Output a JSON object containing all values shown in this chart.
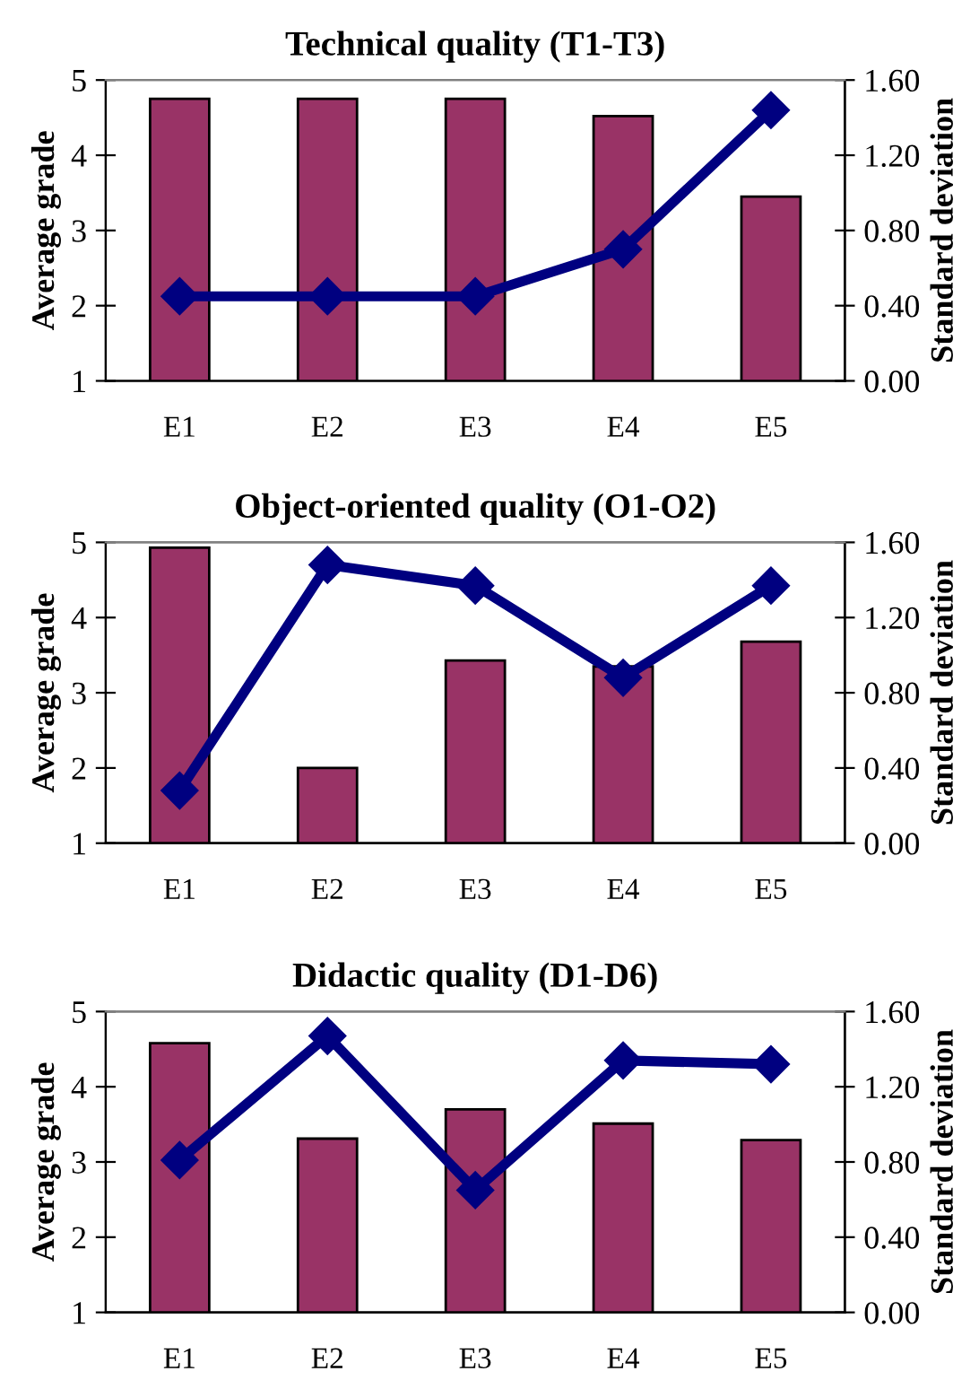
{
  "chart_data": [
    {
      "type": "bar",
      "title": "Technical quality (T1-T3)",
      "ylabel": "Average grade",
      "y2label": "Standard deviation",
      "categories": [
        "E1",
        "E2",
        "E3",
        "E4",
        "E5"
      ],
      "ylim": [
        1,
        5
      ],
      "yticks": [
        1,
        2,
        3,
        4,
        5
      ],
      "y2lim": [
        0,
        1.6
      ],
      "y2ticks": [
        {
          "value": 0,
          "label": "0.00"
        },
        {
          "value": 0.4,
          "label": "0.40"
        },
        {
          "value": 0.8,
          "label": "0.80"
        },
        {
          "value": 1.2,
          "label": "1.20"
        },
        {
          "value": 1.6,
          "label": "1.60"
        }
      ],
      "grid": false,
      "legend": false,
      "series": [
        {
          "color": "#993366",
          "values": [
            4.75,
            4.75,
            4.75,
            4.52,
            3.45
          ]
        },
        {
          "type": "line",
          "axis": "y2",
          "color": "#000080",
          "marker": "diamond",
          "line_style": "solid",
          "values": [
            0.45,
            0.45,
            0.45,
            0.7,
            1.44
          ]
        }
      ]
    },
    {
      "type": "bar",
      "title": "Object-oriented quality (O1-O2)",
      "ylabel": "Average grade",
      "y2label": "Standard deviation",
      "categories": [
        "E1",
        "E2",
        "E3",
        "E4",
        "E5"
      ],
      "ylim": [
        1,
        5
      ],
      "yticks": [
        1,
        2,
        3,
        4,
        5
      ],
      "y2lim": [
        0,
        1.6
      ],
      "y2ticks": [
        {
          "value": 0,
          "label": "0.00"
        },
        {
          "value": 0.4,
          "label": "0.40"
        },
        {
          "value": 0.8,
          "label": "0.80"
        },
        {
          "value": 1.2,
          "label": "1.20"
        },
        {
          "value": 1.6,
          "label": "1.60"
        }
      ],
      "grid": false,
      "legend": false,
      "series": [
        {
          "color": "#993366",
          "values": [
            4.93,
            2.0,
            3.43,
            3.35,
            3.68
          ]
        },
        {
          "type": "line",
          "axis": "y2",
          "color": "#000080",
          "marker": "diamond",
          "line_style": "solid",
          "values": [
            0.28,
            1.48,
            1.37,
            0.88,
            1.37
          ]
        }
      ]
    },
    {
      "type": "bar",
      "title": "Didactic quality (D1-D6)",
      "ylabel": "Average grade",
      "y2label": "Standard deviation",
      "categories": [
        "E1",
        "E2",
        "E3",
        "E4",
        "E5"
      ],
      "ylim": [
        1,
        5
      ],
      "yticks": [
        1,
        2,
        3,
        4,
        5
      ],
      "y2lim": [
        0,
        1.6
      ],
      "y2ticks": [
        {
          "value": 0,
          "label": "0.00"
        },
        {
          "value": 0.4,
          "label": "0.40"
        },
        {
          "value": 0.8,
          "label": "0.80"
        },
        {
          "value": 1.2,
          "label": "1.20"
        },
        {
          "value": 1.6,
          "label": "1.60"
        }
      ],
      "grid": false,
      "legend": false,
      "series": [
        {
          "color": "#993366",
          "values": [
            4.58,
            3.31,
            3.7,
            3.51,
            3.29
          ]
        },
        {
          "type": "line",
          "axis": "y2",
          "color": "#000080",
          "marker": "diamond",
          "line_style": "solid",
          "values": [
            0.81,
            1.47,
            0.65,
            1.34,
            1.32
          ]
        }
      ]
    }
  ]
}
